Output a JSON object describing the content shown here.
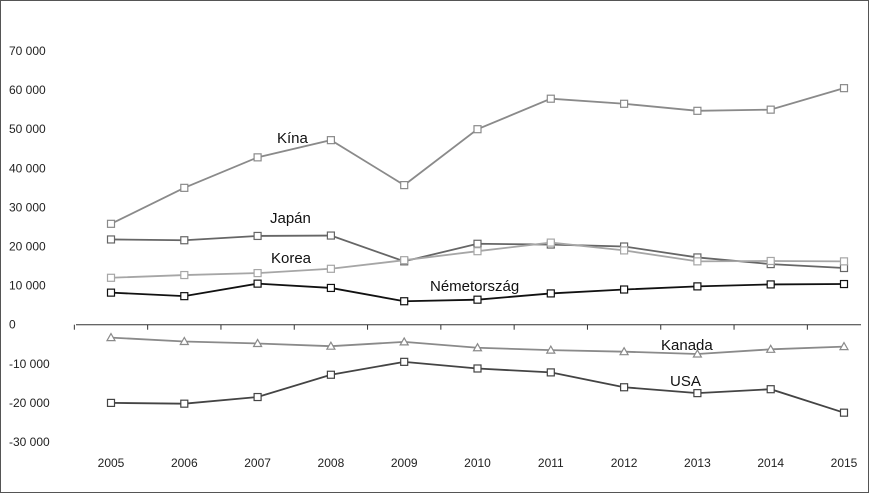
{
  "chart_data": {
    "type": "line",
    "title": "",
    "xlabel": "",
    "ylabel": "",
    "x": [
      "2005",
      "2006",
      "2007",
      "2008",
      "2009",
      "2010",
      "2011",
      "2012",
      "2013",
      "2014",
      "2015"
    ],
    "ylim": [
      -30000,
      70000
    ],
    "yticks": [
      70000,
      60000,
      50000,
      40000,
      30000,
      20000,
      10000,
      0,
      -10000,
      -20000,
      -30000
    ],
    "ytick_labels": [
      "70 000",
      "60 000",
      "50 000",
      "40 000",
      "30 000",
      "20 000",
      "10 000",
      "0",
      "-10 000",
      "-20 000",
      "-30 000"
    ],
    "grid": false,
    "legend": "none",
    "series": [
      {
        "name": "Kína",
        "color": "#8a8a8a",
        "marker": "square",
        "values": [
          25800,
          35000,
          42800,
          47200,
          35700,
          50000,
          57800,
          56500,
          54700,
          55000,
          60500
        ]
      },
      {
        "name": "Japán",
        "color": "#666666",
        "marker": "square",
        "values": [
          21800,
          21600,
          22700,
          22800,
          16200,
          20700,
          20500,
          20000,
          17200,
          15500,
          14500
        ]
      },
      {
        "name": "Korea",
        "color": "#a6a6a6",
        "marker": "square",
        "values": [
          12000,
          12700,
          13200,
          14300,
          16500,
          18800,
          21000,
          19000,
          16200,
          16300,
          16200
        ]
      },
      {
        "name": "Németország",
        "color": "#111111",
        "marker": "square",
        "values": [
          8200,
          7300,
          10500,
          9400,
          6000,
          6400,
          8000,
          9000,
          9800,
          10300,
          10400
        ]
      },
      {
        "name": "Kanada",
        "color": "#8a8a8a",
        "marker": "triangle",
        "values": [
          -3300,
          -4300,
          -4800,
          -5500,
          -4400,
          -5900,
          -6500,
          -6900,
          -7500,
          -6300,
          -5600
        ]
      },
      {
        "name": "USA",
        "color": "#444444",
        "marker": "square",
        "values": [
          -20000,
          -20200,
          -18500,
          -12800,
          -9500,
          -11200,
          -12200,
          -16000,
          -17500,
          -16500,
          -22500
        ]
      }
    ]
  }
}
